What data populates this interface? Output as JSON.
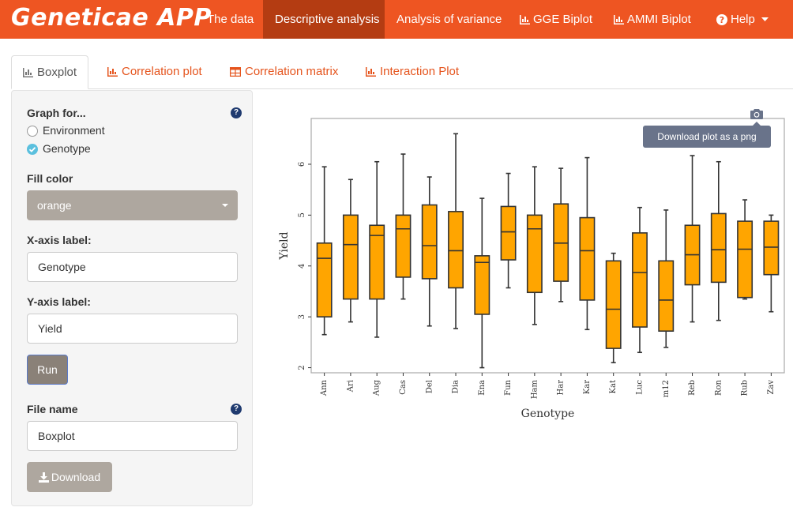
{
  "navbar": {
    "brand": "Geneticae APP",
    "items": [
      {
        "label": "The data"
      },
      {
        "label": "Descriptive analysis"
      },
      {
        "label": "Analysis of variance"
      },
      {
        "label": "GGE Biplot"
      },
      {
        "label": "AMMI Biplot"
      },
      {
        "label": "Help"
      }
    ],
    "color": "#ee5522",
    "active_color": "#b43c12"
  },
  "tabs": [
    {
      "label": "Boxplot",
      "icon": "bar-chart-icon"
    },
    {
      "label": "Correlation plot",
      "icon": "bar-chart-icon"
    },
    {
      "label": "Correlation matrix",
      "icon": "table-icon"
    },
    {
      "label": "Interaction Plot",
      "icon": "bar-chart-icon"
    }
  ],
  "sidebar": {
    "graph_for_label": "Graph for...",
    "options": [
      "Environment",
      "Genotype"
    ],
    "selected_option": "Genotype",
    "fill_color_label": "Fill color",
    "fill_color_value": "orange",
    "x_axis_label": "X-axis label:",
    "x_axis_value": "Genotype",
    "y_axis_label": "Y-axis label:",
    "y_axis_value": "Yield",
    "run_label": "Run",
    "file_name_label": "File name",
    "file_name_value": "Boxplot",
    "download_label": "Download"
  },
  "plot_toolbar": {
    "tooltip": "Download plot as a png"
  },
  "chart_data": {
    "type": "boxplot",
    "xlabel": "Genotype",
    "ylabel": "Yield",
    "ylim": [
      1.9,
      6.9
    ],
    "yticks": [
      2,
      3,
      4,
      5,
      6
    ],
    "fill": "orange",
    "categories": [
      "Ann",
      "Ari",
      "Aug",
      "Cas",
      "Del",
      "Dia",
      "Ena",
      "Fun",
      "Ham",
      "Har",
      "Kar",
      "Kat",
      "Luc",
      "m12",
      "Reb",
      "Ron",
      "Rub",
      "Zav"
    ],
    "boxes": [
      {
        "min": 2.65,
        "q1": 3.0,
        "median": 4.15,
        "q3": 4.45,
        "max": 5.95
      },
      {
        "min": 2.9,
        "q1": 3.35,
        "median": 4.42,
        "q3": 5.0,
        "max": 5.7
      },
      {
        "min": 2.6,
        "q1": 3.35,
        "median": 4.6,
        "q3": 4.8,
        "max": 6.05
      },
      {
        "min": 3.35,
        "q1": 3.78,
        "median": 4.73,
        "q3": 5.0,
        "max": 6.2
      },
      {
        "min": 2.82,
        "q1": 3.75,
        "median": 4.4,
        "q3": 5.2,
        "max": 5.75
      },
      {
        "min": 2.77,
        "q1": 3.57,
        "median": 4.3,
        "q3": 5.07,
        "max": 6.6
      },
      {
        "min": 2.0,
        "q1": 3.05,
        "median": 4.07,
        "q3": 4.2,
        "max": 5.33
      },
      {
        "min": 3.57,
        "q1": 4.12,
        "median": 4.67,
        "q3": 5.17,
        "max": 5.82
      },
      {
        "min": 2.85,
        "q1": 3.48,
        "median": 4.73,
        "q3": 5.0,
        "max": 5.95
      },
      {
        "min": 3.3,
        "q1": 3.7,
        "median": 4.45,
        "q3": 5.22,
        "max": 5.92
      },
      {
        "min": 2.75,
        "q1": 3.33,
        "median": 4.3,
        "q3": 4.95,
        "max": 6.13
      },
      {
        "min": 2.1,
        "q1": 2.38,
        "median": 3.15,
        "q3": 4.1,
        "max": 4.25
      },
      {
        "min": 2.3,
        "q1": 2.8,
        "median": 3.87,
        "q3": 4.65,
        "max": 5.15
      },
      {
        "min": 2.4,
        "q1": 2.72,
        "median": 3.33,
        "q3": 4.1,
        "max": 5.1
      },
      {
        "min": 2.9,
        "q1": 3.63,
        "median": 4.22,
        "q3": 4.8,
        "max": 6.17
      },
      {
        "min": 2.93,
        "q1": 3.68,
        "median": 4.32,
        "q3": 5.03,
        "max": 6.05
      },
      {
        "min": 3.35,
        "q1": 3.38,
        "median": 4.33,
        "q3": 4.88,
        "max": 5.3
      },
      {
        "min": 3.1,
        "q1": 3.83,
        "median": 4.37,
        "q3": 4.88,
        "max": 5.0
      }
    ]
  }
}
